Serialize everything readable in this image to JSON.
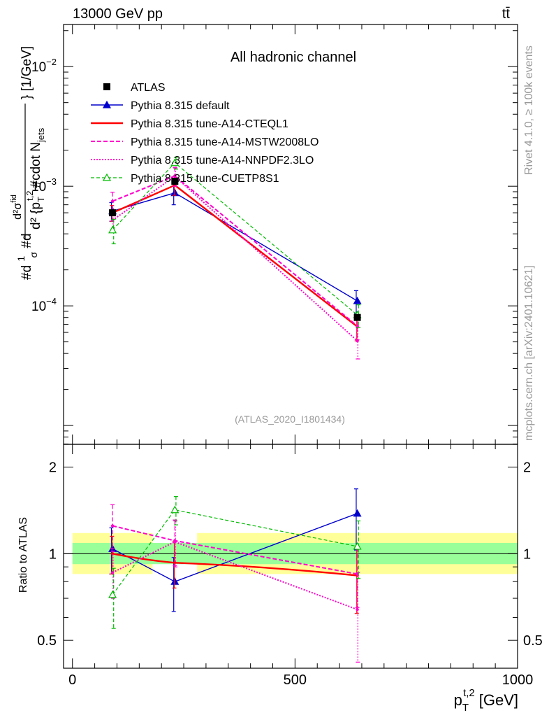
{
  "chart_data": {
    "type": "line",
    "title": "All hadronic channel",
    "header_left": "13000 GeV pp",
    "header_right": "tt̄",
    "side_label_rivet": "Rivet 4.1.0, ≥ 100k events",
    "side_label_mcplots": "mcplots.cern.ch [arXiv:2401.10621]",
    "analysis_id": "(ATLAS_2020_I1801434)",
    "ylabel": "#d₁#d / σ … d²σ^fid / d²{p_T^t,2 #cdot N_jets} [1/GeV]",
    "ylabel_parts": {
      "top": "d²σ",
      "top_sup": "fid",
      "bottom": "d² {p",
      "bottom_sub": "T",
      "bottom_sup": "t,2",
      "bottom_tail": "#cdot N",
      "bottom_tail_sub": "jets",
      "lhs": "#d",
      "lhs_frac_top": "1",
      "lhs_frac_bottom": "σ",
      "lhs_tail": "#d",
      "unit": "} [1/GeV]"
    },
    "xlabel_main": "p",
    "xlabel_sub": "T",
    "xlabel_sup": "t,2",
    "xlabel_unit": "[GeV]",
    "ratio_ylabel": "Ratio to ATLAS",
    "xlim": [
      -20,
      1000
    ],
    "ylim_main": [
      6.96e-06,
      0.0225
    ],
    "ylim_ratio": [
      0.4,
      2.4
    ],
    "x_ticks": [
      0,
      500,
      1000
    ],
    "x_tick_labels": [
      "0",
      "500",
      "1000"
    ],
    "main_y_ticks": [
      0.0001,
      0.001,
      0.01
    ],
    "main_y_tick_labels": [
      [
        "10",
        "−4"
      ],
      [
        "10",
        "−3"
      ],
      [
        "10",
        "−2"
      ]
    ],
    "ratio_y_ticks": [
      0.5,
      1,
      2
    ],
    "ratio_y_tick_labels": [
      "0.5",
      "1",
      "2"
    ],
    "data": {
      "name": "ATLAS",
      "x": [
        90,
        230,
        640
      ],
      "y": [
        0.0006,
        0.0011,
        8e-05
      ],
      "yerr": [
        3e-05,
        5e-05,
        4e-06
      ]
    },
    "bands": {
      "green": [
        {
          "x0": 0,
          "x1": 1000,
          "lo": 0.92,
          "hi": 1.09
        }
      ],
      "yellow": [
        {
          "x0": 0,
          "x1": 180,
          "lo": 0.85,
          "hi": 1.18
        },
        {
          "x0": 280,
          "x1": 1000,
          "lo": 0.85,
          "hi": 1.18
        }
      ]
    },
    "series": [
      {
        "name": "Pythia 8.315 default",
        "color": "#0000cc",
        "dash": "",
        "width": 1.4,
        "marker": "triangle-filled",
        "x": [
          90,
          230,
          640
        ],
        "y": [
          0.00062,
          0.00088,
          0.00011
        ],
        "yerr_lo": [
          0.00011,
          0.00018,
          2.4e-05
        ],
        "yerr_hi": [
          0.00011,
          0.00018,
          2.4e-05
        ],
        "ratio": [
          1.04,
          0.8,
          1.38
        ],
        "ratio_err_lo": [
          0.19,
          0.17,
          0.35
        ],
        "ratio_err_hi": [
          0.19,
          0.17,
          0.3
        ]
      },
      {
        "name": "Pythia 8.315 tune-A14-CTEQL1",
        "color": "#ff0000",
        "dash": "",
        "width": 2.4,
        "marker": "dot",
        "x": [
          90,
          230,
          640
        ],
        "y": [
          0.0006,
          0.00102,
          6.7e-05
        ],
        "yerr_lo": [
          9e-05,
          0.00018,
          1.6e-05
        ],
        "yerr_hi": [
          9e-05,
          0.00018,
          1.6e-05
        ],
        "ratio": [
          1.0,
          0.93,
          0.84
        ],
        "ratio_err_lo": [
          0.15,
          0.17,
          0.22
        ],
        "ratio_err_hi": [
          0.15,
          0.17,
          0.22
        ]
      },
      {
        "name": "Pythia 8.315 tune-A14-MSTW2008LO",
        "color": "#ff00cc",
        "dash": "6,3",
        "width": 2,
        "marker": "dot",
        "x": [
          90,
          230,
          640
        ],
        "y": [
          0.00075,
          0.00122,
          6.8e-05
        ],
        "yerr_lo": [
          0.00012,
          0.00022,
          1.6e-05
        ],
        "yerr_hi": [
          0.00014,
          0.00022,
          1.6e-05
        ],
        "ratio": [
          1.25,
          1.11,
          0.85
        ],
        "ratio_err_lo": [
          0.21,
          0.2,
          0.2
        ],
        "ratio_err_hi": [
          0.23,
          0.2,
          0.2
        ]
      },
      {
        "name": "Pythia 8.315 tune-A14-NNPDF2.3LO",
        "color": "#ff00cc",
        "dash": "2,2",
        "width": 2,
        "marker": "dot",
        "x": [
          90,
          230,
          640
        ],
        "y": [
          0.00052,
          0.00121,
          5.1e-05
        ],
        "yerr_lo": [
          9e-05,
          0.00021,
          1.5e-05
        ],
        "yerr_hi": [
          9e-05,
          0.00021,
          1.5e-05
        ],
        "ratio": [
          0.86,
          1.1,
          0.64
        ],
        "ratio_err_lo": [
          0.16,
          0.2,
          0.22
        ],
        "ratio_err_hi": [
          0.16,
          0.2,
          0.22
        ]
      },
      {
        "name": "Pythia 8.315 tune-CUETP8S1",
        "color": "#00bb00",
        "dash": "5,3",
        "width": 1.2,
        "marker": "triangle-open",
        "x": [
          90,
          230,
          640
        ],
        "y": [
          0.00043,
          0.00157,
          8.4e-05
        ],
        "yerr_lo": [
          0.0001,
          0.00018,
          1.8e-05
        ],
        "yerr_hi": [
          0.0001,
          0.00018,
          1.8e-05
        ],
        "ratio": [
          0.72,
          1.42,
          1.06
        ],
        "ratio_err_lo": [
          0.17,
          0.16,
          0.24
        ],
        "ratio_err_hi": [
          0.17,
          0.16,
          0.24
        ]
      }
    ]
  }
}
